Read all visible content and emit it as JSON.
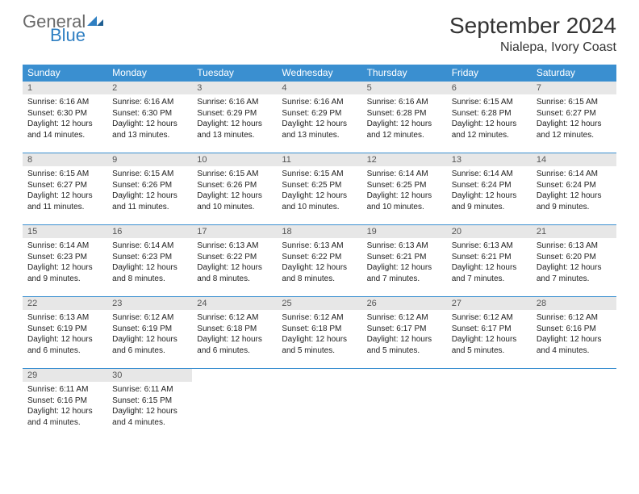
{
  "brand": {
    "word1": "General",
    "word2": "Blue"
  },
  "title": "September 2024",
  "location": "Nialepa, Ivory Coast",
  "colors": {
    "header_bg": "#3a8fd0",
    "header_text": "#ffffff",
    "daynum_bg": "#e7e7e7",
    "rule": "#3a8fd0",
    "logo_gray": "#6a6a6a",
    "logo_blue": "#2f7fc2"
  },
  "weekdays": [
    "Sunday",
    "Monday",
    "Tuesday",
    "Wednesday",
    "Thursday",
    "Friday",
    "Saturday"
  ],
  "days": [
    {
      "n": 1,
      "sunrise": "6:16 AM",
      "sunset": "6:30 PM",
      "daylight": "12 hours and 14 minutes."
    },
    {
      "n": 2,
      "sunrise": "6:16 AM",
      "sunset": "6:30 PM",
      "daylight": "12 hours and 13 minutes."
    },
    {
      "n": 3,
      "sunrise": "6:16 AM",
      "sunset": "6:29 PM",
      "daylight": "12 hours and 13 minutes."
    },
    {
      "n": 4,
      "sunrise": "6:16 AM",
      "sunset": "6:29 PM",
      "daylight": "12 hours and 13 minutes."
    },
    {
      "n": 5,
      "sunrise": "6:16 AM",
      "sunset": "6:28 PM",
      "daylight": "12 hours and 12 minutes."
    },
    {
      "n": 6,
      "sunrise": "6:15 AM",
      "sunset": "6:28 PM",
      "daylight": "12 hours and 12 minutes."
    },
    {
      "n": 7,
      "sunrise": "6:15 AM",
      "sunset": "6:27 PM",
      "daylight": "12 hours and 12 minutes."
    },
    {
      "n": 8,
      "sunrise": "6:15 AM",
      "sunset": "6:27 PM",
      "daylight": "12 hours and 11 minutes."
    },
    {
      "n": 9,
      "sunrise": "6:15 AM",
      "sunset": "6:26 PM",
      "daylight": "12 hours and 11 minutes."
    },
    {
      "n": 10,
      "sunrise": "6:15 AM",
      "sunset": "6:26 PM",
      "daylight": "12 hours and 10 minutes."
    },
    {
      "n": 11,
      "sunrise": "6:15 AM",
      "sunset": "6:25 PM",
      "daylight": "12 hours and 10 minutes."
    },
    {
      "n": 12,
      "sunrise": "6:14 AM",
      "sunset": "6:25 PM",
      "daylight": "12 hours and 10 minutes."
    },
    {
      "n": 13,
      "sunrise": "6:14 AM",
      "sunset": "6:24 PM",
      "daylight": "12 hours and 9 minutes."
    },
    {
      "n": 14,
      "sunrise": "6:14 AM",
      "sunset": "6:24 PM",
      "daylight": "12 hours and 9 minutes."
    },
    {
      "n": 15,
      "sunrise": "6:14 AM",
      "sunset": "6:23 PM",
      "daylight": "12 hours and 9 minutes."
    },
    {
      "n": 16,
      "sunrise": "6:14 AM",
      "sunset": "6:23 PM",
      "daylight": "12 hours and 8 minutes."
    },
    {
      "n": 17,
      "sunrise": "6:13 AM",
      "sunset": "6:22 PM",
      "daylight": "12 hours and 8 minutes."
    },
    {
      "n": 18,
      "sunrise": "6:13 AM",
      "sunset": "6:22 PM",
      "daylight": "12 hours and 8 minutes."
    },
    {
      "n": 19,
      "sunrise": "6:13 AM",
      "sunset": "6:21 PM",
      "daylight": "12 hours and 7 minutes."
    },
    {
      "n": 20,
      "sunrise": "6:13 AM",
      "sunset": "6:21 PM",
      "daylight": "12 hours and 7 minutes."
    },
    {
      "n": 21,
      "sunrise": "6:13 AM",
      "sunset": "6:20 PM",
      "daylight": "12 hours and 7 minutes."
    },
    {
      "n": 22,
      "sunrise": "6:13 AM",
      "sunset": "6:19 PM",
      "daylight": "12 hours and 6 minutes."
    },
    {
      "n": 23,
      "sunrise": "6:12 AM",
      "sunset": "6:19 PM",
      "daylight": "12 hours and 6 minutes."
    },
    {
      "n": 24,
      "sunrise": "6:12 AM",
      "sunset": "6:18 PM",
      "daylight": "12 hours and 6 minutes."
    },
    {
      "n": 25,
      "sunrise": "6:12 AM",
      "sunset": "6:18 PM",
      "daylight": "12 hours and 5 minutes."
    },
    {
      "n": 26,
      "sunrise": "6:12 AM",
      "sunset": "6:17 PM",
      "daylight": "12 hours and 5 minutes."
    },
    {
      "n": 27,
      "sunrise": "6:12 AM",
      "sunset": "6:17 PM",
      "daylight": "12 hours and 5 minutes."
    },
    {
      "n": 28,
      "sunrise": "6:12 AM",
      "sunset": "6:16 PM",
      "daylight": "12 hours and 4 minutes."
    },
    {
      "n": 29,
      "sunrise": "6:11 AM",
      "sunset": "6:16 PM",
      "daylight": "12 hours and 4 minutes."
    },
    {
      "n": 30,
      "sunrise": "6:11 AM",
      "sunset": "6:15 PM",
      "daylight": "12 hours and 4 minutes."
    }
  ],
  "labels": {
    "sunrise": "Sunrise:",
    "sunset": "Sunset:",
    "daylight": "Daylight:"
  },
  "start_weekday": 0,
  "total_cells": 35
}
